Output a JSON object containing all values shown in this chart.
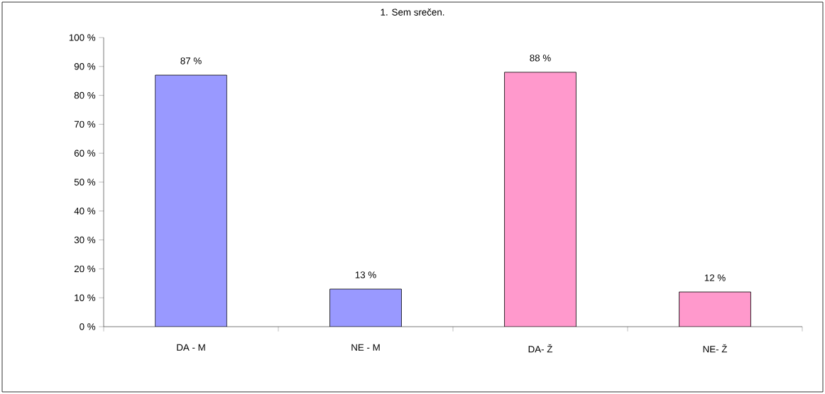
{
  "chart_data": {
    "type": "bar",
    "title": "1. Sem srečen.",
    "categories": [
      "DA - M",
      "NE - M",
      "DA- Ž",
      "NE- Ž"
    ],
    "values": [
      87,
      13,
      88,
      12
    ],
    "colors": [
      "#9999ff",
      "#9999ff",
      "#ff99cc",
      "#ff99cc"
    ],
    "value_labels": [
      "87 %",
      "13 %",
      "88 %",
      "12 %"
    ],
    "ylim": [
      0,
      100
    ],
    "yticks": [
      {
        "value": 0,
        "label": "0 %"
      },
      {
        "value": 10,
        "label": "10 %"
      },
      {
        "value": 20,
        "label": "20 %"
      },
      {
        "value": 30,
        "label": "30 %"
      },
      {
        "value": 40,
        "label": "40 %"
      },
      {
        "value": 50,
        "label": "50 %"
      },
      {
        "value": 60,
        "label": "60 %"
      },
      {
        "value": 70,
        "label": "70 %"
      },
      {
        "value": 80,
        "label": "80 %"
      },
      {
        "value": 90,
        "label": "90 %"
      },
      {
        "value": 100,
        "label": "100 %"
      }
    ],
    "grid": false
  }
}
